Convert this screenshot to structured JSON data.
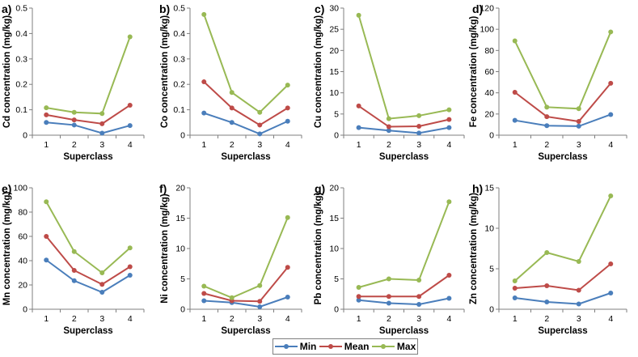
{
  "chart_data": [
    {
      "type": "line",
      "letter": "a)",
      "ylabel": "Cd concentration (mg/kg)",
      "xlabel": "Superclass",
      "categories": [
        "1",
        "2",
        "3",
        "4"
      ],
      "ylim": [
        0,
        0.5
      ],
      "yticks": [
        "0",
        "0.1",
        "0.2",
        "0.3",
        "0.4",
        "0.5"
      ],
      "series": [
        {
          "name": "Min",
          "values": [
            0.05,
            0.04,
            0.008,
            0.038
          ]
        },
        {
          "name": "Mean",
          "values": [
            0.08,
            0.06,
            0.045,
            0.118
          ]
        },
        {
          "name": "Max",
          "values": [
            0.108,
            0.09,
            0.085,
            0.387
          ]
        }
      ]
    },
    {
      "type": "line",
      "letter": "b)",
      "ylabel": "Co concentration (mg/kg)",
      "xlabel": "Superclass",
      "categories": [
        "1",
        "2",
        "3",
        "4"
      ],
      "ylim": [
        0,
        0.5
      ],
      "yticks": [
        "0",
        "0.1",
        "0.2",
        "0.3",
        "0.4",
        "0.5"
      ],
      "series": [
        {
          "name": "Min",
          "values": [
            0.087,
            0.05,
            0.005,
            0.055
          ]
        },
        {
          "name": "Mean",
          "values": [
            0.21,
            0.107,
            0.04,
            0.107
          ]
        },
        {
          "name": "Max",
          "values": [
            0.475,
            0.168,
            0.09,
            0.197
          ]
        }
      ]
    },
    {
      "type": "line",
      "letter": "c)",
      "ylabel": "Cu concentration (mg/kg)",
      "xlabel": "Superclass",
      "categories": [
        "1",
        "2",
        "3",
        "4"
      ],
      "ylim": [
        0,
        30
      ],
      "yticks": [
        "0",
        "5",
        "10",
        "15",
        "20",
        "25",
        "30"
      ],
      "series": [
        {
          "name": "Min",
          "values": [
            1.8,
            1.1,
            0.5,
            1.8
          ]
        },
        {
          "name": "Mean",
          "values": [
            6.9,
            2.0,
            2.1,
            3.7
          ]
        },
        {
          "name": "Max",
          "values": [
            28.3,
            3.9,
            4.6,
            6.0
          ]
        }
      ]
    },
    {
      "type": "line",
      "letter": "d)",
      "ylabel": "Fe concentration (mg/kg)",
      "xlabel": "Superclass",
      "categories": [
        "1",
        "2",
        "3",
        "4"
      ],
      "ylim": [
        0,
        120
      ],
      "yticks": [
        "0",
        "20",
        "40",
        "60",
        "80",
        "100",
        "120"
      ],
      "series": [
        {
          "name": "Min",
          "values": [
            14,
            9,
            8.5,
            19.5
          ]
        },
        {
          "name": "Mean",
          "values": [
            40.5,
            17.5,
            13,
            49
          ]
        },
        {
          "name": "Max",
          "values": [
            89,
            26.5,
            25,
            97.5
          ]
        }
      ]
    },
    {
      "type": "line",
      "letter": "e)",
      "ylabel": "Mn concentration (mg/kg)",
      "xlabel": "Superclass",
      "categories": [
        "1",
        "2",
        "3",
        "4"
      ],
      "ylim": [
        0,
        100
      ],
      "yticks": [
        "0",
        "20",
        "40",
        "60",
        "80",
        "100"
      ],
      "series": [
        {
          "name": "Min",
          "values": [
            40.5,
            23.5,
            14,
            28
          ]
        },
        {
          "name": "Mean",
          "values": [
            60,
            32,
            20.5,
            35
          ]
        },
        {
          "name": "Max",
          "values": [
            88.5,
            47.5,
            30,
            50.5
          ]
        }
      ]
    },
    {
      "type": "line",
      "letter": "f)",
      "ylabel": "Ni concentration (mg/kg)",
      "xlabel": "Superclass",
      "categories": [
        "1",
        "2",
        "3",
        "4"
      ],
      "ylim": [
        0,
        20
      ],
      "yticks": [
        "0",
        "5",
        "10",
        "15",
        "20"
      ],
      "series": [
        {
          "name": "Min",
          "values": [
            1.4,
            1.1,
            0.4,
            2.0
          ]
        },
        {
          "name": "Mean",
          "values": [
            2.6,
            1.4,
            1.3,
            6.9
          ]
        },
        {
          "name": "Max",
          "values": [
            3.8,
            1.9,
            3.9,
            15.1
          ]
        }
      ]
    },
    {
      "type": "line",
      "letter": "g)",
      "ylabel": "Pb concentration (mg/kg)",
      "xlabel": "Superclass",
      "categories": [
        "1",
        "2",
        "3",
        "4"
      ],
      "ylim": [
        0,
        20
      ],
      "yticks": [
        "0",
        "5",
        "10",
        "15",
        "20"
      ],
      "series": [
        {
          "name": "Min",
          "values": [
            1.5,
            1.0,
            0.8,
            1.8
          ]
        },
        {
          "name": "Mean",
          "values": [
            2.1,
            2.1,
            2.1,
            5.6
          ]
        },
        {
          "name": "Max",
          "values": [
            3.6,
            5.0,
            4.8,
            17.7
          ]
        }
      ]
    },
    {
      "type": "line",
      "letter": "h)",
      "ylabel": "Zn concentration (mg/kg)",
      "xlabel": "Superclass",
      "categories": [
        "1",
        "2",
        "3",
        "4"
      ],
      "ylim": [
        0,
        15
      ],
      "yticks": [
        "0",
        "5",
        "10",
        "15"
      ],
      "series": [
        {
          "name": "Min",
          "values": [
            1.4,
            0.9,
            0.65,
            2.0
          ]
        },
        {
          "name": "Mean",
          "values": [
            2.6,
            2.9,
            2.35,
            5.6
          ]
        },
        {
          "name": "Max",
          "values": [
            3.5,
            7.0,
            5.9,
            14.0
          ]
        }
      ]
    }
  ],
  "legend": {
    "items": [
      {
        "name": "Min",
        "color": "#4a7ebb"
      },
      {
        "name": "Mean",
        "color": "#be4b48"
      },
      {
        "name": "Max",
        "color": "#98b954"
      }
    ]
  },
  "colors": {
    "Min": "#4a7ebb",
    "Mean": "#be4b48",
    "Max": "#98b954",
    "axis": "#7f7f7f"
  }
}
